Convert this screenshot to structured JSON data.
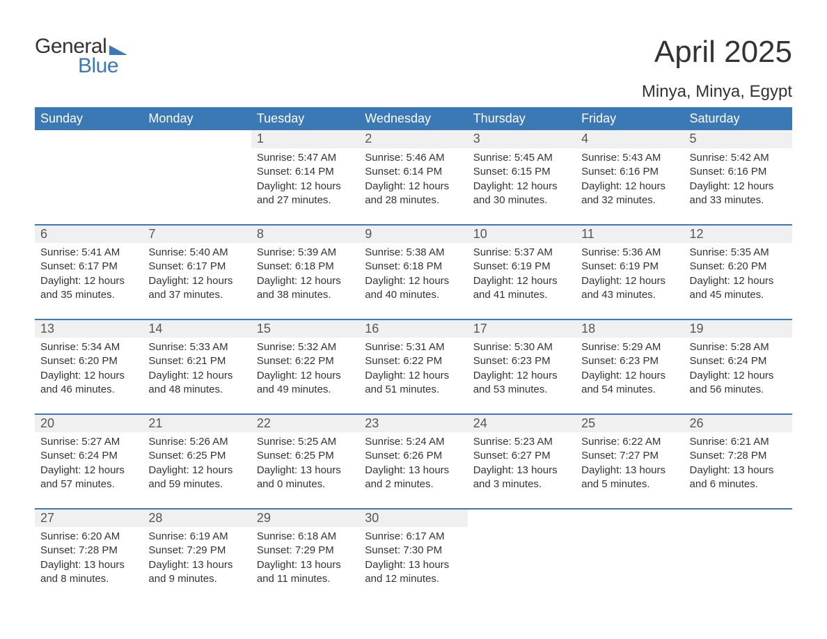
{
  "logo": {
    "text_general": "General",
    "text_blue": "Blue",
    "triangle_color": "#3a78b6"
  },
  "title": "April 2025",
  "location": "Minya, Minya, Egypt",
  "colors": {
    "header_bg": "#3a78b6",
    "header_text": "#ffffff",
    "daynum_bg": "#f0f0f0",
    "row_border": "#3a78b6",
    "body_text": "#333333",
    "page_bg": "#ffffff"
  },
  "typography": {
    "title_fontsize": 44,
    "location_fontsize": 24,
    "header_fontsize": 18,
    "daynum_fontsize": 18,
    "body_fontsize": 15
  },
  "calendar": {
    "type": "table",
    "columns": [
      "Sunday",
      "Monday",
      "Tuesday",
      "Wednesday",
      "Thursday",
      "Friday",
      "Saturday"
    ],
    "weeks": [
      [
        null,
        null,
        {
          "n": "1",
          "sr": "Sunrise: 5:47 AM",
          "ss": "Sunset: 6:14 PM",
          "d1": "Daylight: 12 hours",
          "d2": "and 27 minutes."
        },
        {
          "n": "2",
          "sr": "Sunrise: 5:46 AM",
          "ss": "Sunset: 6:14 PM",
          "d1": "Daylight: 12 hours",
          "d2": "and 28 minutes."
        },
        {
          "n": "3",
          "sr": "Sunrise: 5:45 AM",
          "ss": "Sunset: 6:15 PM",
          "d1": "Daylight: 12 hours",
          "d2": "and 30 minutes."
        },
        {
          "n": "4",
          "sr": "Sunrise: 5:43 AM",
          "ss": "Sunset: 6:16 PM",
          "d1": "Daylight: 12 hours",
          "d2": "and 32 minutes."
        },
        {
          "n": "5",
          "sr": "Sunrise: 5:42 AM",
          "ss": "Sunset: 6:16 PM",
          "d1": "Daylight: 12 hours",
          "d2": "and 33 minutes."
        }
      ],
      [
        {
          "n": "6",
          "sr": "Sunrise: 5:41 AM",
          "ss": "Sunset: 6:17 PM",
          "d1": "Daylight: 12 hours",
          "d2": "and 35 minutes."
        },
        {
          "n": "7",
          "sr": "Sunrise: 5:40 AM",
          "ss": "Sunset: 6:17 PM",
          "d1": "Daylight: 12 hours",
          "d2": "and 37 minutes."
        },
        {
          "n": "8",
          "sr": "Sunrise: 5:39 AM",
          "ss": "Sunset: 6:18 PM",
          "d1": "Daylight: 12 hours",
          "d2": "and 38 minutes."
        },
        {
          "n": "9",
          "sr": "Sunrise: 5:38 AM",
          "ss": "Sunset: 6:18 PM",
          "d1": "Daylight: 12 hours",
          "d2": "and 40 minutes."
        },
        {
          "n": "10",
          "sr": "Sunrise: 5:37 AM",
          "ss": "Sunset: 6:19 PM",
          "d1": "Daylight: 12 hours",
          "d2": "and 41 minutes."
        },
        {
          "n": "11",
          "sr": "Sunrise: 5:36 AM",
          "ss": "Sunset: 6:19 PM",
          "d1": "Daylight: 12 hours",
          "d2": "and 43 minutes."
        },
        {
          "n": "12",
          "sr": "Sunrise: 5:35 AM",
          "ss": "Sunset: 6:20 PM",
          "d1": "Daylight: 12 hours",
          "d2": "and 45 minutes."
        }
      ],
      [
        {
          "n": "13",
          "sr": "Sunrise: 5:34 AM",
          "ss": "Sunset: 6:20 PM",
          "d1": "Daylight: 12 hours",
          "d2": "and 46 minutes."
        },
        {
          "n": "14",
          "sr": "Sunrise: 5:33 AM",
          "ss": "Sunset: 6:21 PM",
          "d1": "Daylight: 12 hours",
          "d2": "and 48 minutes."
        },
        {
          "n": "15",
          "sr": "Sunrise: 5:32 AM",
          "ss": "Sunset: 6:22 PM",
          "d1": "Daylight: 12 hours",
          "d2": "and 49 minutes."
        },
        {
          "n": "16",
          "sr": "Sunrise: 5:31 AM",
          "ss": "Sunset: 6:22 PM",
          "d1": "Daylight: 12 hours",
          "d2": "and 51 minutes."
        },
        {
          "n": "17",
          "sr": "Sunrise: 5:30 AM",
          "ss": "Sunset: 6:23 PM",
          "d1": "Daylight: 12 hours",
          "d2": "and 53 minutes."
        },
        {
          "n": "18",
          "sr": "Sunrise: 5:29 AM",
          "ss": "Sunset: 6:23 PM",
          "d1": "Daylight: 12 hours",
          "d2": "and 54 minutes."
        },
        {
          "n": "19",
          "sr": "Sunrise: 5:28 AM",
          "ss": "Sunset: 6:24 PM",
          "d1": "Daylight: 12 hours",
          "d2": "and 56 minutes."
        }
      ],
      [
        {
          "n": "20",
          "sr": "Sunrise: 5:27 AM",
          "ss": "Sunset: 6:24 PM",
          "d1": "Daylight: 12 hours",
          "d2": "and 57 minutes."
        },
        {
          "n": "21",
          "sr": "Sunrise: 5:26 AM",
          "ss": "Sunset: 6:25 PM",
          "d1": "Daylight: 12 hours",
          "d2": "and 59 minutes."
        },
        {
          "n": "22",
          "sr": "Sunrise: 5:25 AM",
          "ss": "Sunset: 6:25 PM",
          "d1": "Daylight: 13 hours",
          "d2": "and 0 minutes."
        },
        {
          "n": "23",
          "sr": "Sunrise: 5:24 AM",
          "ss": "Sunset: 6:26 PM",
          "d1": "Daylight: 13 hours",
          "d2": "and 2 minutes."
        },
        {
          "n": "24",
          "sr": "Sunrise: 5:23 AM",
          "ss": "Sunset: 6:27 PM",
          "d1": "Daylight: 13 hours",
          "d2": "and 3 minutes."
        },
        {
          "n": "25",
          "sr": "Sunrise: 6:22 AM",
          "ss": "Sunset: 7:27 PM",
          "d1": "Daylight: 13 hours",
          "d2": "and 5 minutes."
        },
        {
          "n": "26",
          "sr": "Sunrise: 6:21 AM",
          "ss": "Sunset: 7:28 PM",
          "d1": "Daylight: 13 hours",
          "d2": "and 6 minutes."
        }
      ],
      [
        {
          "n": "27",
          "sr": "Sunrise: 6:20 AM",
          "ss": "Sunset: 7:28 PM",
          "d1": "Daylight: 13 hours",
          "d2": "and 8 minutes."
        },
        {
          "n": "28",
          "sr": "Sunrise: 6:19 AM",
          "ss": "Sunset: 7:29 PM",
          "d1": "Daylight: 13 hours",
          "d2": "and 9 minutes."
        },
        {
          "n": "29",
          "sr": "Sunrise: 6:18 AM",
          "ss": "Sunset: 7:29 PM",
          "d1": "Daylight: 13 hours",
          "d2": "and 11 minutes."
        },
        {
          "n": "30",
          "sr": "Sunrise: 6:17 AM",
          "ss": "Sunset: 7:30 PM",
          "d1": "Daylight: 13 hours",
          "d2": "and 12 minutes."
        },
        null,
        null,
        null
      ]
    ]
  }
}
